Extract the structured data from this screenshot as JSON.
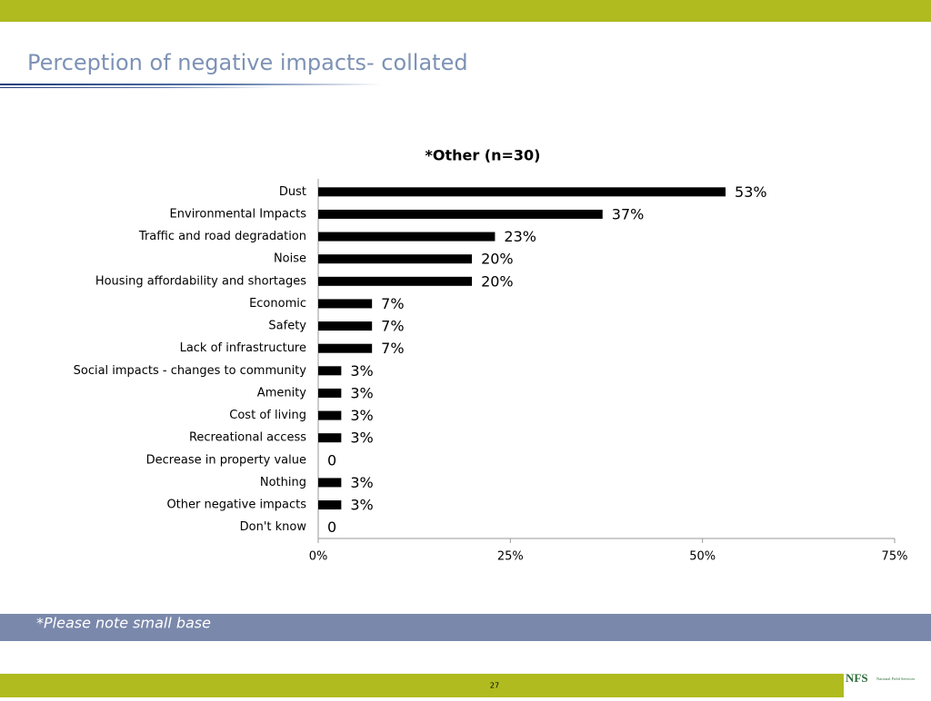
{
  "slide": {
    "title": "Perception of negative impacts- collated",
    "note": "*Please note small base",
    "page_number": "27",
    "logo": "NFS",
    "logo_subtitle": "National Field Services"
  },
  "chart_data": {
    "type": "bar",
    "orientation": "horizontal",
    "title": "*Other (n=30)",
    "categories": [
      "Dust",
      "Environmental Impacts",
      "Traffic and road degradation",
      "Noise",
      "Housing affordability and shortages",
      "Economic",
      "Safety",
      "Lack of infrastructure",
      "Social impacts - changes to community",
      "Amenity",
      "Cost of living",
      "Recreational  access",
      "Decrease in property value",
      "Nothing",
      "Other negative impacts",
      "Don't know"
    ],
    "values": [
      53,
      37,
      23,
      20,
      20,
      7,
      7,
      7,
      3,
      3,
      3,
      3,
      0,
      3,
      3,
      0
    ],
    "value_labels": [
      "53%",
      "37%",
      "23%",
      "20%",
      "20%",
      "7%",
      "7%",
      "7%",
      "3%",
      "3%",
      "3%",
      "3%",
      "0",
      "3%",
      "3%",
      "0"
    ],
    "color": "#000000",
    "xlim": [
      0,
      75
    ],
    "xticks": [
      {
        "value": 0,
        "label": "0%"
      },
      {
        "value": 25,
        "label": "25%"
      },
      {
        "value": 50,
        "label": "50%"
      },
      {
        "value": 75,
        "label": "75%"
      }
    ],
    "grid": false
  }
}
